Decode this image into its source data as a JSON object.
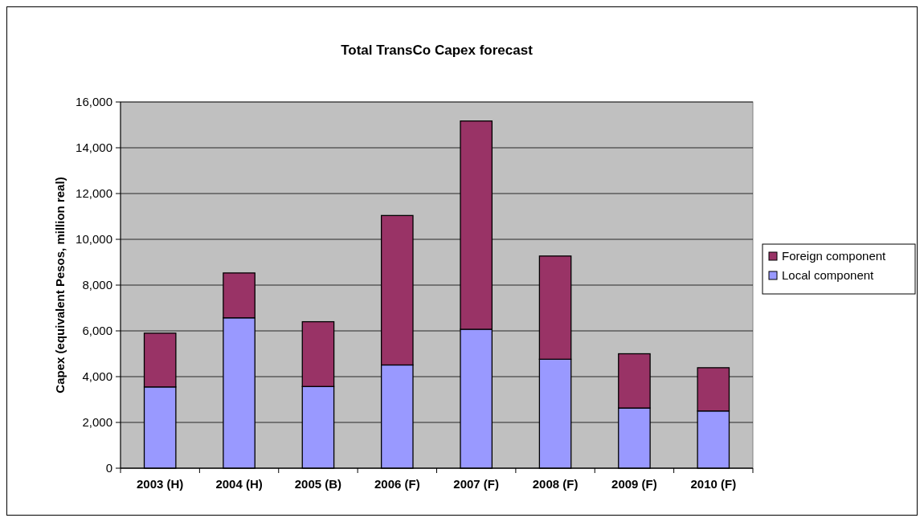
{
  "chart_data": {
    "type": "bar",
    "title": "Total TransCo Capex forecast",
    "ylabel": "Capex (equivalent Pesos, million real)",
    "categories": [
      "2003 (H)",
      "2004 (H)",
      "2005 (B)",
      "2006 (F)",
      "2007 (F)",
      "2008 (F)",
      "2009 (F)",
      "2010 (F)"
    ],
    "stacked": true,
    "series": [
      {
        "name": "Local component",
        "color": "#9999ff",
        "values": [
          3550,
          6570,
          3570,
          4510,
          6070,
          4760,
          2630,
          2500
        ]
      },
      {
        "name": "Foreign component",
        "color": "#993366",
        "values": [
          2350,
          1960,
          2830,
          6530,
          9100,
          4510,
          2370,
          1890
        ]
      }
    ],
    "ylim": [
      0,
      16000
    ],
    "yticks": [
      {
        "value": 0,
        "label": "0"
      },
      {
        "value": 2000,
        "label": "2,000"
      },
      {
        "value": 4000,
        "label": "4,000"
      },
      {
        "value": 6000,
        "label": "6,000"
      },
      {
        "value": 8000,
        "label": "8,000"
      },
      {
        "value": 10000,
        "label": "10,000"
      },
      {
        "value": 12000,
        "label": "12,000"
      },
      {
        "value": 14000,
        "label": "14,000"
      },
      {
        "value": 16000,
        "label": "16,000"
      }
    ],
    "grid": "y",
    "legend": "right"
  }
}
